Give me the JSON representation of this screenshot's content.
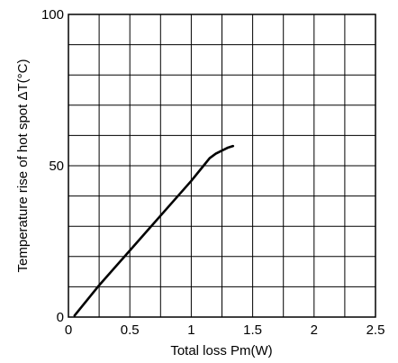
{
  "chart_data": {
    "type": "line",
    "title": "",
    "xlabel": "Total loss Pm(W)",
    "ylabel": "Temperature rise of hot spot ΔT(°C)",
    "xlim": [
      0,
      2.5
    ],
    "ylim": [
      0,
      100
    ],
    "grid": true,
    "legend": "none",
    "x_ticks": [
      0,
      0.5,
      1,
      1.5,
      2,
      2.5
    ],
    "x_tick_labels": [
      "0",
      "0.5",
      "1",
      "1.5",
      "2",
      "2.5"
    ],
    "x_minor_grid": [
      0.25,
      0.75,
      1.25,
      1.75,
      2.25
    ],
    "y_ticks": [
      0,
      50,
      100
    ],
    "y_tick_labels": [
      "0",
      "50",
      "100"
    ],
    "y_minor_grid": [
      10,
      20,
      30,
      40,
      60,
      70,
      80,
      90
    ],
    "series": [
      {
        "x": [
          0.05,
          0.25,
          0.5,
          0.75,
          1.0,
          1.1,
          1.15,
          1.2,
          1.25,
          1.3,
          1.34
        ],
        "y": [
          0.5,
          10.5,
          22.0,
          33.5,
          45.0,
          50.0,
          52.5,
          54.0,
          55.0,
          56.0,
          56.5
        ],
        "color": "#000000"
      }
    ]
  }
}
